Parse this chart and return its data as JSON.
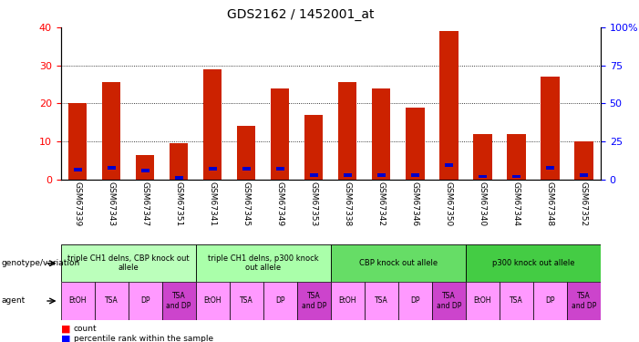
{
  "title": "GDS2162 / 1452001_at",
  "samples": [
    "GSM67339",
    "GSM67343",
    "GSM67347",
    "GSM67351",
    "GSM67341",
    "GSM67345",
    "GSM67349",
    "GSM67353",
    "GSM67338",
    "GSM67342",
    "GSM67346",
    "GSM67350",
    "GSM67340",
    "GSM67344",
    "GSM67348",
    "GSM67352"
  ],
  "count_values": [
    20,
    25.5,
    6.5,
    9.5,
    29,
    14,
    24,
    17,
    25.5,
    24,
    19,
    39,
    12,
    12,
    27,
    10
  ],
  "percentile_values": [
    6.5,
    7.5,
    6,
    1,
    7,
    7,
    7,
    3,
    3,
    3,
    3,
    9.5,
    2,
    2,
    7.5,
    3
  ],
  "genotype_groups": [
    {
      "label": "triple CH1 delns, CBP knock out\nallele",
      "start": 0,
      "end": 4,
      "color": "#bbffbb"
    },
    {
      "label": "triple CH1 delns, p300 knock\nout allele",
      "start": 4,
      "end": 8,
      "color": "#ccffcc"
    },
    {
      "label": "CBP knock out allele",
      "start": 8,
      "end": 12,
      "color": "#66dd66"
    },
    {
      "label": "p300 knock out allele",
      "start": 12,
      "end": 16,
      "color": "#44cc44"
    }
  ],
  "agent_labels": [
    "EtOH",
    "TSA",
    "DP",
    "TSA\nand DP",
    "EtOH",
    "TSA",
    "DP",
    "TSA\nand DP",
    "EtOH",
    "TSA",
    "DP",
    "TSA\nand DP",
    "EtOH",
    "TSA",
    "DP",
    "TSA\nand DP"
  ],
  "agent_colors": [
    "#ff99ff",
    "#ff99ff",
    "#ff99ff",
    "#cc44cc",
    "#ff99ff",
    "#ff99ff",
    "#ff99ff",
    "#cc44cc",
    "#ff99ff",
    "#ff99ff",
    "#ff99ff",
    "#cc44cc",
    "#ff99ff",
    "#ff99ff",
    "#ff99ff",
    "#cc44cc"
  ],
  "bar_color": "#cc2200",
  "pct_color": "#0000cc",
  "ylim_left": [
    0,
    40
  ],
  "ylim_right": [
    0,
    100
  ],
  "yticks_left": [
    0,
    10,
    20,
    30,
    40
  ],
  "yticks_right": [
    0,
    25,
    50,
    75,
    100
  ],
  "ytick_labels_right": [
    "0",
    "25",
    "50",
    "75",
    "100%"
  ],
  "background_color": "#ffffff",
  "xtick_bg": "#cccccc",
  "grid_color": "#000000"
}
